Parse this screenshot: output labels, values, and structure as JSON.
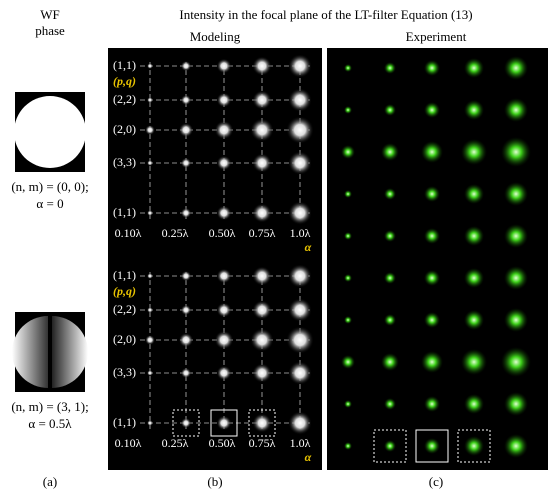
{
  "header": {
    "wf_phase": [
      "WF",
      "phase"
    ],
    "title": "Intensity in the focal plane of the LT-filter Equation (13)",
    "modeling": "Modeling",
    "experiment": "Experiment"
  },
  "panels": [
    {
      "phase_label": "(n, m) = (0, 0);",
      "alpha_label": "α = 0",
      "row_labels": [
        "(1,1)",
        "(p,q)",
        "(2,2)",
        "(2,0)",
        "(3,3)",
        "(1,1)"
      ],
      "column_labels": [
        "0.10λ",
        "0.25λ",
        "0.50λ",
        "0.75λ",
        "1.0λ"
      ],
      "axis_label": "α"
    },
    {
      "phase_label": "(n, m) = (3, 1);",
      "alpha_label": "α = 0.5λ",
      "row_labels": [
        "(1,1)",
        "(p,q)",
        "(2,2)",
        "(2,0)",
        "(3,3)",
        "(1,1)"
      ],
      "column_labels": [
        "0.10λ",
        "0.25λ",
        "0.50λ",
        "0.75λ",
        "1.0λ"
      ],
      "axis_label": "α"
    }
  ],
  "subfigure_labels": [
    "(a)",
    "(b)",
    "(c)"
  ]
}
